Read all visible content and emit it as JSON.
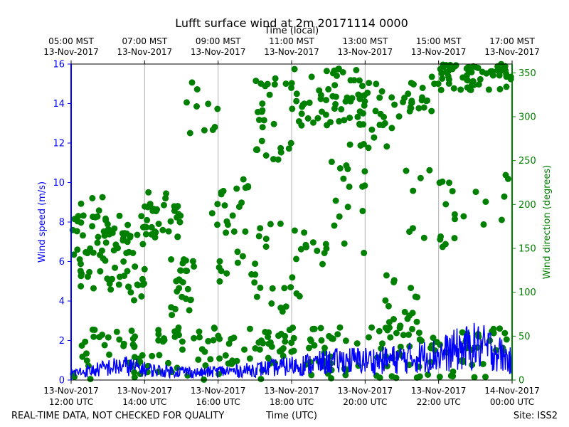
{
  "chart_data": {
    "type": "line+scatter",
    "title": "Lufft surface wind at 2m 20171114 0000",
    "top_axis_label": "Time (local)",
    "xlabel": "Time (UTC)",
    "ylabel_left": "Wind speed (m/s)",
    "ylabel_right": "Wind direction (degrees)",
    "x_range_hours_utc": [
      12,
      24
    ],
    "ylim_left": [
      0,
      16
    ],
    "ylim_right": [
      0,
      360
    ],
    "left_ticks": [
      "0",
      "2",
      "4",
      "6",
      "8",
      "10",
      "12",
      "14",
      "16"
    ],
    "right_ticks": [
      "0",
      "50",
      "100",
      "150",
      "200",
      "250",
      "300",
      "350"
    ],
    "bottom_ticks": [
      {
        "hour": 12,
        "line1": "13-Nov-2017",
        "line2": "12:00 UTC"
      },
      {
        "hour": 14,
        "line1": "13-Nov-2017",
        "line2": "14:00 UTC"
      },
      {
        "hour": 16,
        "line1": "13-Nov-2017",
        "line2": "16:00 UTC"
      },
      {
        "hour": 18,
        "line1": "13-Nov-2017",
        "line2": "18:00 UTC"
      },
      {
        "hour": 20,
        "line1": "13-Nov-2017",
        "line2": "20:00 UTC"
      },
      {
        "hour": 22,
        "line1": "13-Nov-2017",
        "line2": "22:00 UTC"
      },
      {
        "hour": 24,
        "line1": "14-Nov-2017",
        "line2": "00:00 UTC"
      }
    ],
    "top_ticks": [
      {
        "hour": 12,
        "line1": "05:00 MST",
        "line2": "13-Nov-2017"
      },
      {
        "hour": 14,
        "line1": "07:00 MST",
        "line2": "13-Nov-2017"
      },
      {
        "hour": 16,
        "line1": "09:00 MST",
        "line2": "13-Nov-2017"
      },
      {
        "hour": 18,
        "line1": "11:00 MST",
        "line2": "13-Nov-2017"
      },
      {
        "hour": 20,
        "line1": "13:00 MST",
        "line2": "13-Nov-2017"
      },
      {
        "hour": 22,
        "line1": "15:00 MST",
        "line2": "13-Nov-2017"
      },
      {
        "hour": 24,
        "line1": "17:00 MST",
        "line2": "13-Nov-2017"
      }
    ],
    "speed_series": {
      "name": "Wind speed",
      "color": "#0000ff",
      "x_hours": [
        12.0,
        12.5,
        13.0,
        13.5,
        14.0,
        14.5,
        15.0,
        15.5,
        16.0,
        16.5,
        17.0,
        17.5,
        18.0,
        18.5,
        19.0,
        19.5,
        20.0,
        20.5,
        21.0,
        21.5,
        22.0,
        22.5,
        23.0,
        23.5,
        24.0
      ],
      "values": [
        0.4,
        0.5,
        0.7,
        0.8,
        0.6,
        0.5,
        0.5,
        0.4,
        0.5,
        0.5,
        0.6,
        0.7,
        0.8,
        0.9,
        1.0,
        1.1,
        1.1,
        1.1,
        1.2,
        1.3,
        1.4,
        1.7,
        1.9,
        1.7,
        1.0
      ]
    },
    "direction_series": {
      "name": "Wind direction",
      "color": "#008000",
      "clusters": [
        {
          "start": 12.0,
          "end": 13.0,
          "lo": 100,
          "hi": 210,
          "n": 45
        },
        {
          "start": 13.0,
          "end": 14.0,
          "lo": 90,
          "hi": 190,
          "n": 45
        },
        {
          "start": 14.0,
          "end": 15.0,
          "lo": 160,
          "hi": 215,
          "n": 35
        },
        {
          "start": 14.7,
          "end": 15.4,
          "lo": 70,
          "hi": 140,
          "n": 25
        },
        {
          "start": 15.0,
          "end": 16.0,
          "lo": 280,
          "hi": 350,
          "n": 10
        },
        {
          "start": 15.8,
          "end": 17.0,
          "lo": 110,
          "hi": 230,
          "n": 30
        },
        {
          "start": 17.0,
          "end": 18.0,
          "lo": 250,
          "hi": 350,
          "n": 28
        },
        {
          "start": 17.0,
          "end": 18.5,
          "lo": 30,
          "hi": 180,
          "n": 35
        },
        {
          "start": 18.0,
          "end": 20.0,
          "lo": 290,
          "hi": 355,
          "n": 55
        },
        {
          "start": 18.5,
          "end": 20.0,
          "lo": 130,
          "hi": 250,
          "n": 22
        },
        {
          "start": 19.5,
          "end": 21.0,
          "lo": 260,
          "hi": 340,
          "n": 30
        },
        {
          "start": 20.5,
          "end": 21.5,
          "lo": 40,
          "hi": 120,
          "n": 22
        },
        {
          "start": 21.0,
          "end": 22.0,
          "lo": 300,
          "hi": 355,
          "n": 22
        },
        {
          "start": 21.0,
          "end": 22.5,
          "lo": 150,
          "hi": 240,
          "n": 15
        },
        {
          "start": 22.0,
          "end": 24.0,
          "lo": 330,
          "hi": 360,
          "n": 60
        },
        {
          "start": 22.0,
          "end": 24.0,
          "lo": 160,
          "hi": 240,
          "n": 12
        }
      ],
      "low_band": {
        "start": 12.0,
        "end": 24.0,
        "lo": 0,
        "hi": 60,
        "n": 210
      }
    },
    "grid": "vertical"
  },
  "footer": {
    "left_note": "REAL-TIME DATA, NOT CHECKED FOR QUALITY",
    "center_label": "Time (UTC)",
    "site": "Site: ISS2"
  }
}
